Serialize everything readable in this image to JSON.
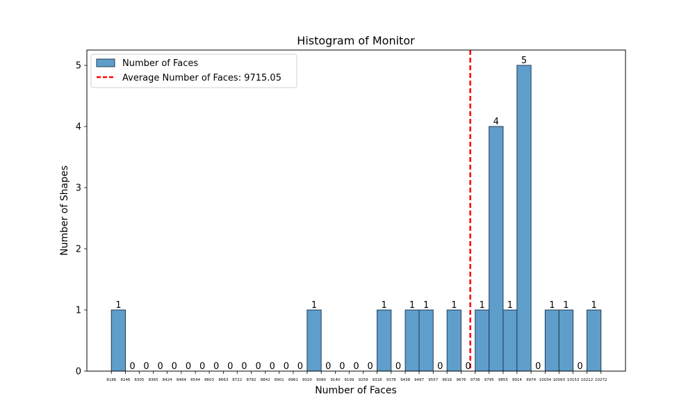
{
  "chart_data": {
    "type": "bar",
    "title": "Histogram of Monitor",
    "xlabel": "Number of Faces",
    "ylabel": "Number of Shapes",
    "bin_edges": [
      8186,
      8246,
      8305,
      8365,
      8424,
      8484,
      8544,
      8603,
      8663,
      8722,
      8782,
      8842,
      8901,
      8961,
      9020,
      9080,
      9140,
      9199,
      9259,
      9318,
      9378,
      9438,
      9497,
      9557,
      9616,
      9676,
      9736,
      9795,
      9855,
      9914,
      9974,
      10034,
      10093,
      10153,
      10212,
      10272
    ],
    "values": [
      1,
      0,
      0,
      0,
      0,
      0,
      0,
      0,
      0,
      0,
      0,
      0,
      0,
      0,
      1,
      0,
      0,
      0,
      0,
      1,
      0,
      1,
      1,
      0,
      1,
      0,
      1,
      4,
      1,
      5,
      0,
      1,
      1,
      0,
      1
    ],
    "ylim": [
      0,
      5.25
    ],
    "yticks": [
      0,
      1,
      2,
      3,
      4,
      5
    ],
    "average": {
      "value": 9715.05,
      "label": "Average Number of Faces: 9715.05",
      "color": "#ff0000"
    },
    "series": [
      {
        "name": "Number of Faces",
        "color": "#5f9ecb",
        "edge_color": "#1f3a52"
      }
    ],
    "legend_position": "top-left",
    "grid": false
  }
}
